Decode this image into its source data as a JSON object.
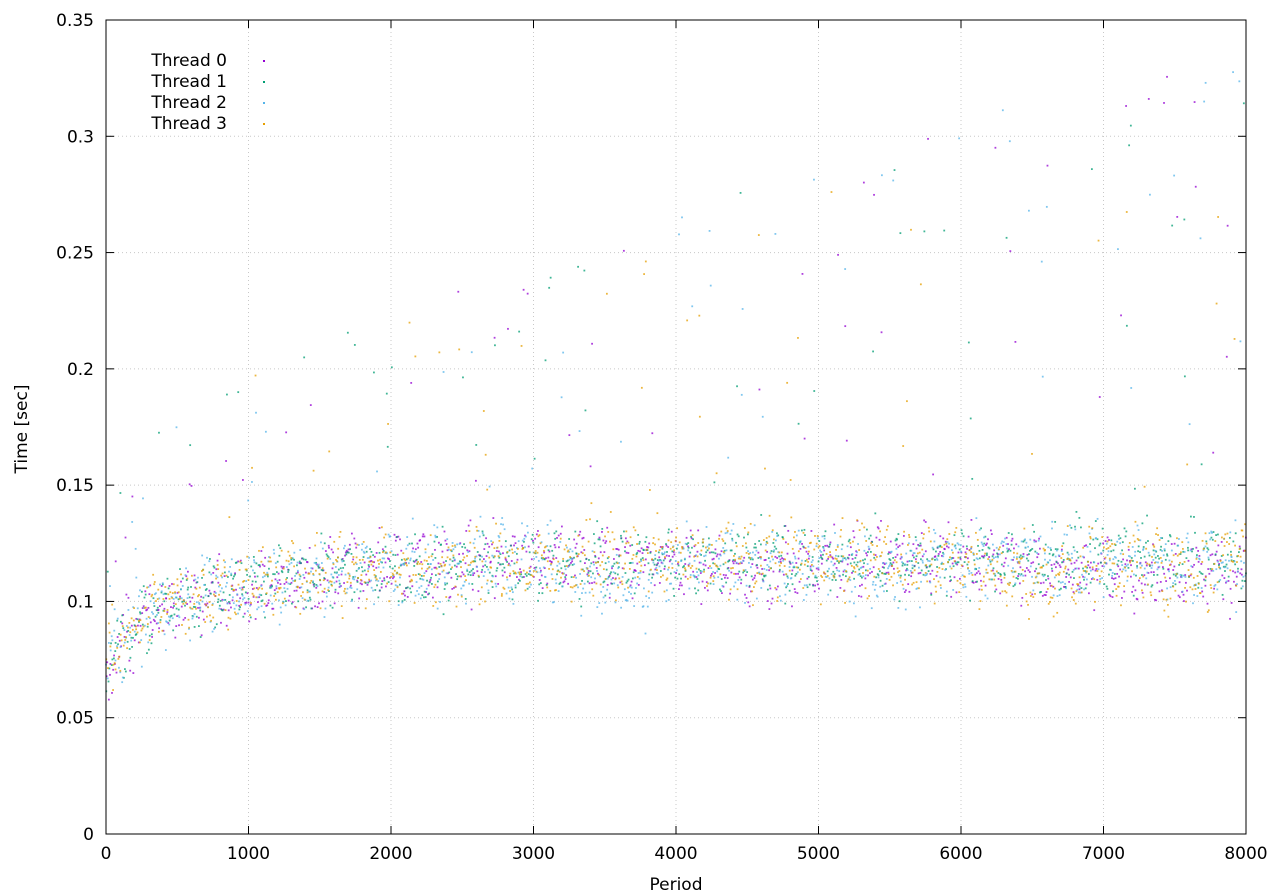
{
  "chart_data": {
    "type": "scatter",
    "title": "",
    "xlabel": "Period",
    "ylabel": "Time [sec]",
    "xlim": [
      0,
      8000
    ],
    "ylim": [
      0,
      0.35
    ],
    "xticks": [
      0,
      1000,
      2000,
      3000,
      4000,
      5000,
      6000,
      7000,
      8000
    ],
    "xtick_labels": [
      "0",
      "1000",
      "2000",
      "3000",
      "4000",
      "5000",
      "6000",
      "7000",
      "8000"
    ],
    "yticks": [
      0,
      0.05,
      0.1,
      0.15,
      0.2,
      0.25,
      0.3,
      0.35
    ],
    "ytick_labels": [
      "0",
      "0.05",
      "0.1",
      "0.15",
      "0.2",
      "0.25",
      "0.3",
      "0.35"
    ],
    "grid": true,
    "legend_position": "top-left",
    "series": [
      {
        "name": "Thread 0",
        "color": "#9400d3",
        "trend": [
          [
            0,
            0.07
          ],
          [
            200,
            0.09
          ],
          [
            500,
            0.1
          ],
          [
            1000,
            0.105
          ],
          [
            1500,
            0.112
          ],
          [
            2000,
            0.115
          ],
          [
            3000,
            0.117
          ],
          [
            4000,
            0.118
          ],
          [
            4500,
            0.112
          ],
          [
            5000,
            0.117
          ],
          [
            6000,
            0.118
          ],
          [
            7000,
            0.112
          ],
          [
            8000,
            0.113
          ]
        ],
        "spread": 0.01
      },
      {
        "name": "Thread 1",
        "color": "#009e73",
        "trend": [
          [
            0,
            0.072
          ],
          [
            200,
            0.092
          ],
          [
            500,
            0.101
          ],
          [
            1000,
            0.106
          ],
          [
            1500,
            0.112
          ],
          [
            2000,
            0.114
          ],
          [
            3000,
            0.116
          ],
          [
            4000,
            0.118
          ],
          [
            5000,
            0.117
          ],
          [
            6000,
            0.118
          ],
          [
            7000,
            0.118
          ],
          [
            8000,
            0.118
          ]
        ],
        "spread": 0.01
      },
      {
        "name": "Thread 2",
        "color": "#56b4e9",
        "trend": [
          [
            0,
            0.071
          ],
          [
            200,
            0.091
          ],
          [
            500,
            0.1
          ],
          [
            1000,
            0.106
          ],
          [
            1500,
            0.111
          ],
          [
            2000,
            0.115
          ],
          [
            3000,
            0.118
          ],
          [
            3700,
            0.105
          ],
          [
            4000,
            0.118
          ],
          [
            5000,
            0.118
          ],
          [
            5500,
            0.11
          ],
          [
            6000,
            0.118
          ],
          [
            7000,
            0.118
          ],
          [
            8000,
            0.116
          ]
        ],
        "spread": 0.011
      },
      {
        "name": "Thread 3",
        "color": "#e69f00",
        "trend": [
          [
            0,
            0.072
          ],
          [
            200,
            0.092
          ],
          [
            500,
            0.101
          ],
          [
            1000,
            0.106
          ],
          [
            1500,
            0.112
          ],
          [
            2000,
            0.114
          ],
          [
            3000,
            0.116
          ],
          [
            4000,
            0.118
          ],
          [
            5000,
            0.118
          ],
          [
            6000,
            0.118
          ],
          [
            6500,
            0.108
          ],
          [
            7000,
            0.118
          ],
          [
            7700,
            0.11
          ],
          [
            8000,
            0.13
          ]
        ],
        "spread": 0.011
      }
    ]
  }
}
